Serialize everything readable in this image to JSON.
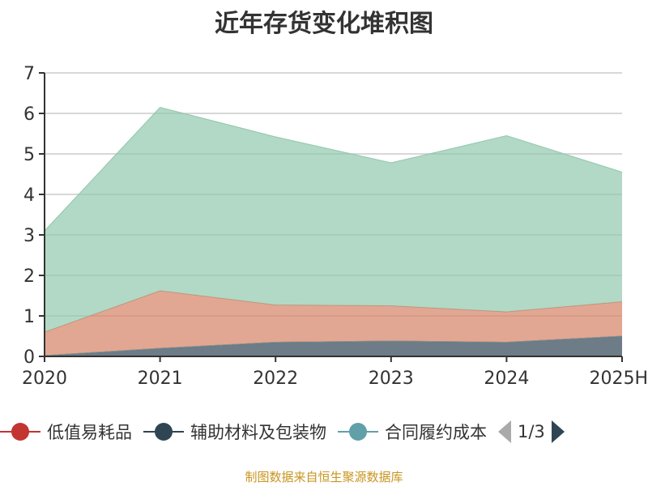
{
  "title": "近年存货变化堆积图",
  "legend": {
    "items": [
      {
        "name": "低值易耗品",
        "color": "#c23531"
      },
      {
        "name": "辅助材料及包装物",
        "color": "#2f4554"
      },
      {
        "name": "合同履约成本",
        "color": "#61a0a8"
      }
    ],
    "page": "1/3"
  },
  "source": "制图数据来自恒生聚源数据库",
  "chart_data": {
    "type": "area",
    "stacked": true,
    "title": "近年存货变化堆积图",
    "categories": [
      "2020",
      "2021",
      "2022",
      "2023",
      "2024",
      "2025H"
    ],
    "ylim": [
      0,
      7
    ],
    "yticks": [
      0,
      1,
      2,
      3,
      4,
      5,
      6,
      7
    ],
    "grid": true,
    "legend_placement": "bottom",
    "series": [
      {
        "name": "低值易耗品",
        "color": "#c23531",
        "values": [
          0,
          0,
          0,
          0,
          0,
          0
        ]
      },
      {
        "name": "辅助材料及包装物",
        "color": "#2f4554",
        "values": [
          0.02,
          0.2,
          0.35,
          0.38,
          0.35,
          0.5
        ]
      },
      {
        "name": "合同履约成本",
        "color": "#61a0a8",
        "values": [
          0,
          0,
          0,
          0,
          0,
          0
        ]
      },
      {
        "color": "#d48265",
        "values": [
          0.58,
          1.42,
          0.92,
          0.87,
          0.75,
          0.85
        ]
      },
      {
        "color": "#91c7ae",
        "values": [
          2.5,
          4.53,
          4.15,
          3.53,
          4.35,
          3.2
        ]
      }
    ]
  }
}
